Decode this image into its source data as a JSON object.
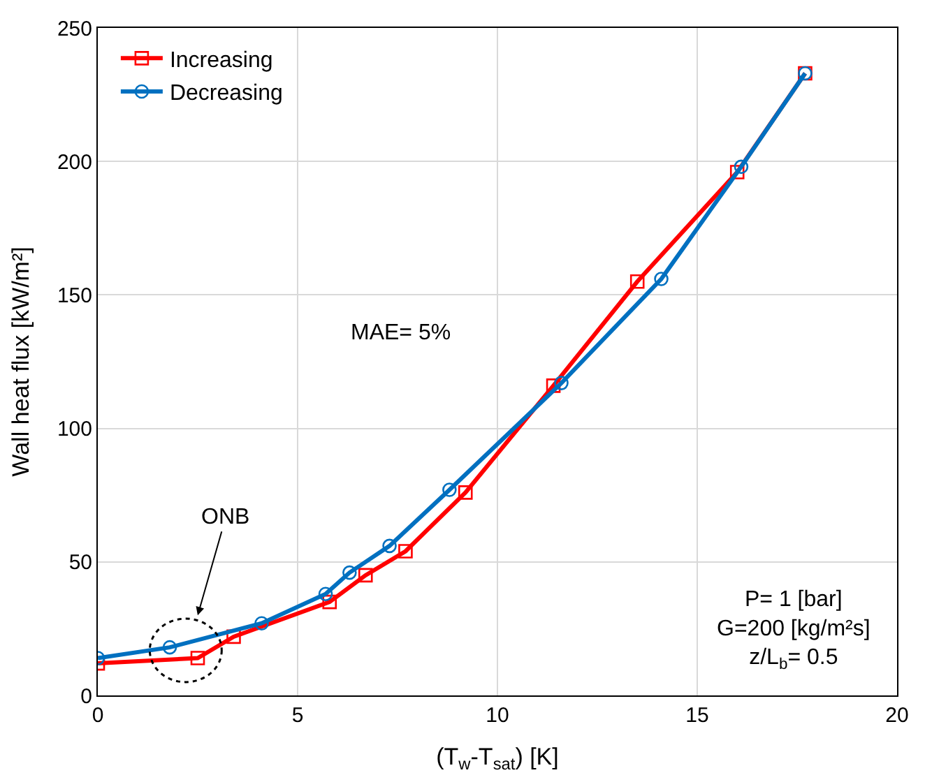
{
  "chart_data": {
    "type": "line",
    "xlabel": "(T$_{w}$-T$_{sat}$) [K]",
    "ylabel": "Wall heat flux [kW/m²]",
    "xlim": [
      0,
      20
    ],
    "xticks": [
      0,
      5,
      10,
      15,
      20
    ],
    "ylim": [
      0,
      250
    ],
    "yticks": [
      0,
      50,
      100,
      150,
      200,
      250
    ],
    "grid": true,
    "legend": "top left",
    "line_style": "solid",
    "series": [
      {
        "name": "Increasing",
        "color": "#ff0000",
        "marker": "square",
        "x": [
          0,
          2.5,
          3.4,
          5.8,
          6.7,
          7.7,
          9.2,
          11.4,
          13.5,
          16.0,
          17.7
        ],
        "values": [
          12,
          14,
          22,
          35,
          45,
          54,
          76,
          116,
          155,
          196,
          233
        ]
      },
      {
        "name": "Decreasing",
        "color": "#0070c0",
        "marker": "circle",
        "x": [
          0,
          1.8,
          4.1,
          5.7,
          6.3,
          7.3,
          8.8,
          11.6,
          14.1,
          16.1,
          17.7
        ],
        "values": [
          14,
          18,
          27,
          38,
          46,
          56,
          77,
          117,
          156,
          198,
          233
        ]
      }
    ],
    "annotations": [
      "ONB",
      "MAE= 5%",
      "P= 1 [bar]\nG=200 [kg/m²s]\nz/L$_{b}$= 0.5"
    ]
  }
}
